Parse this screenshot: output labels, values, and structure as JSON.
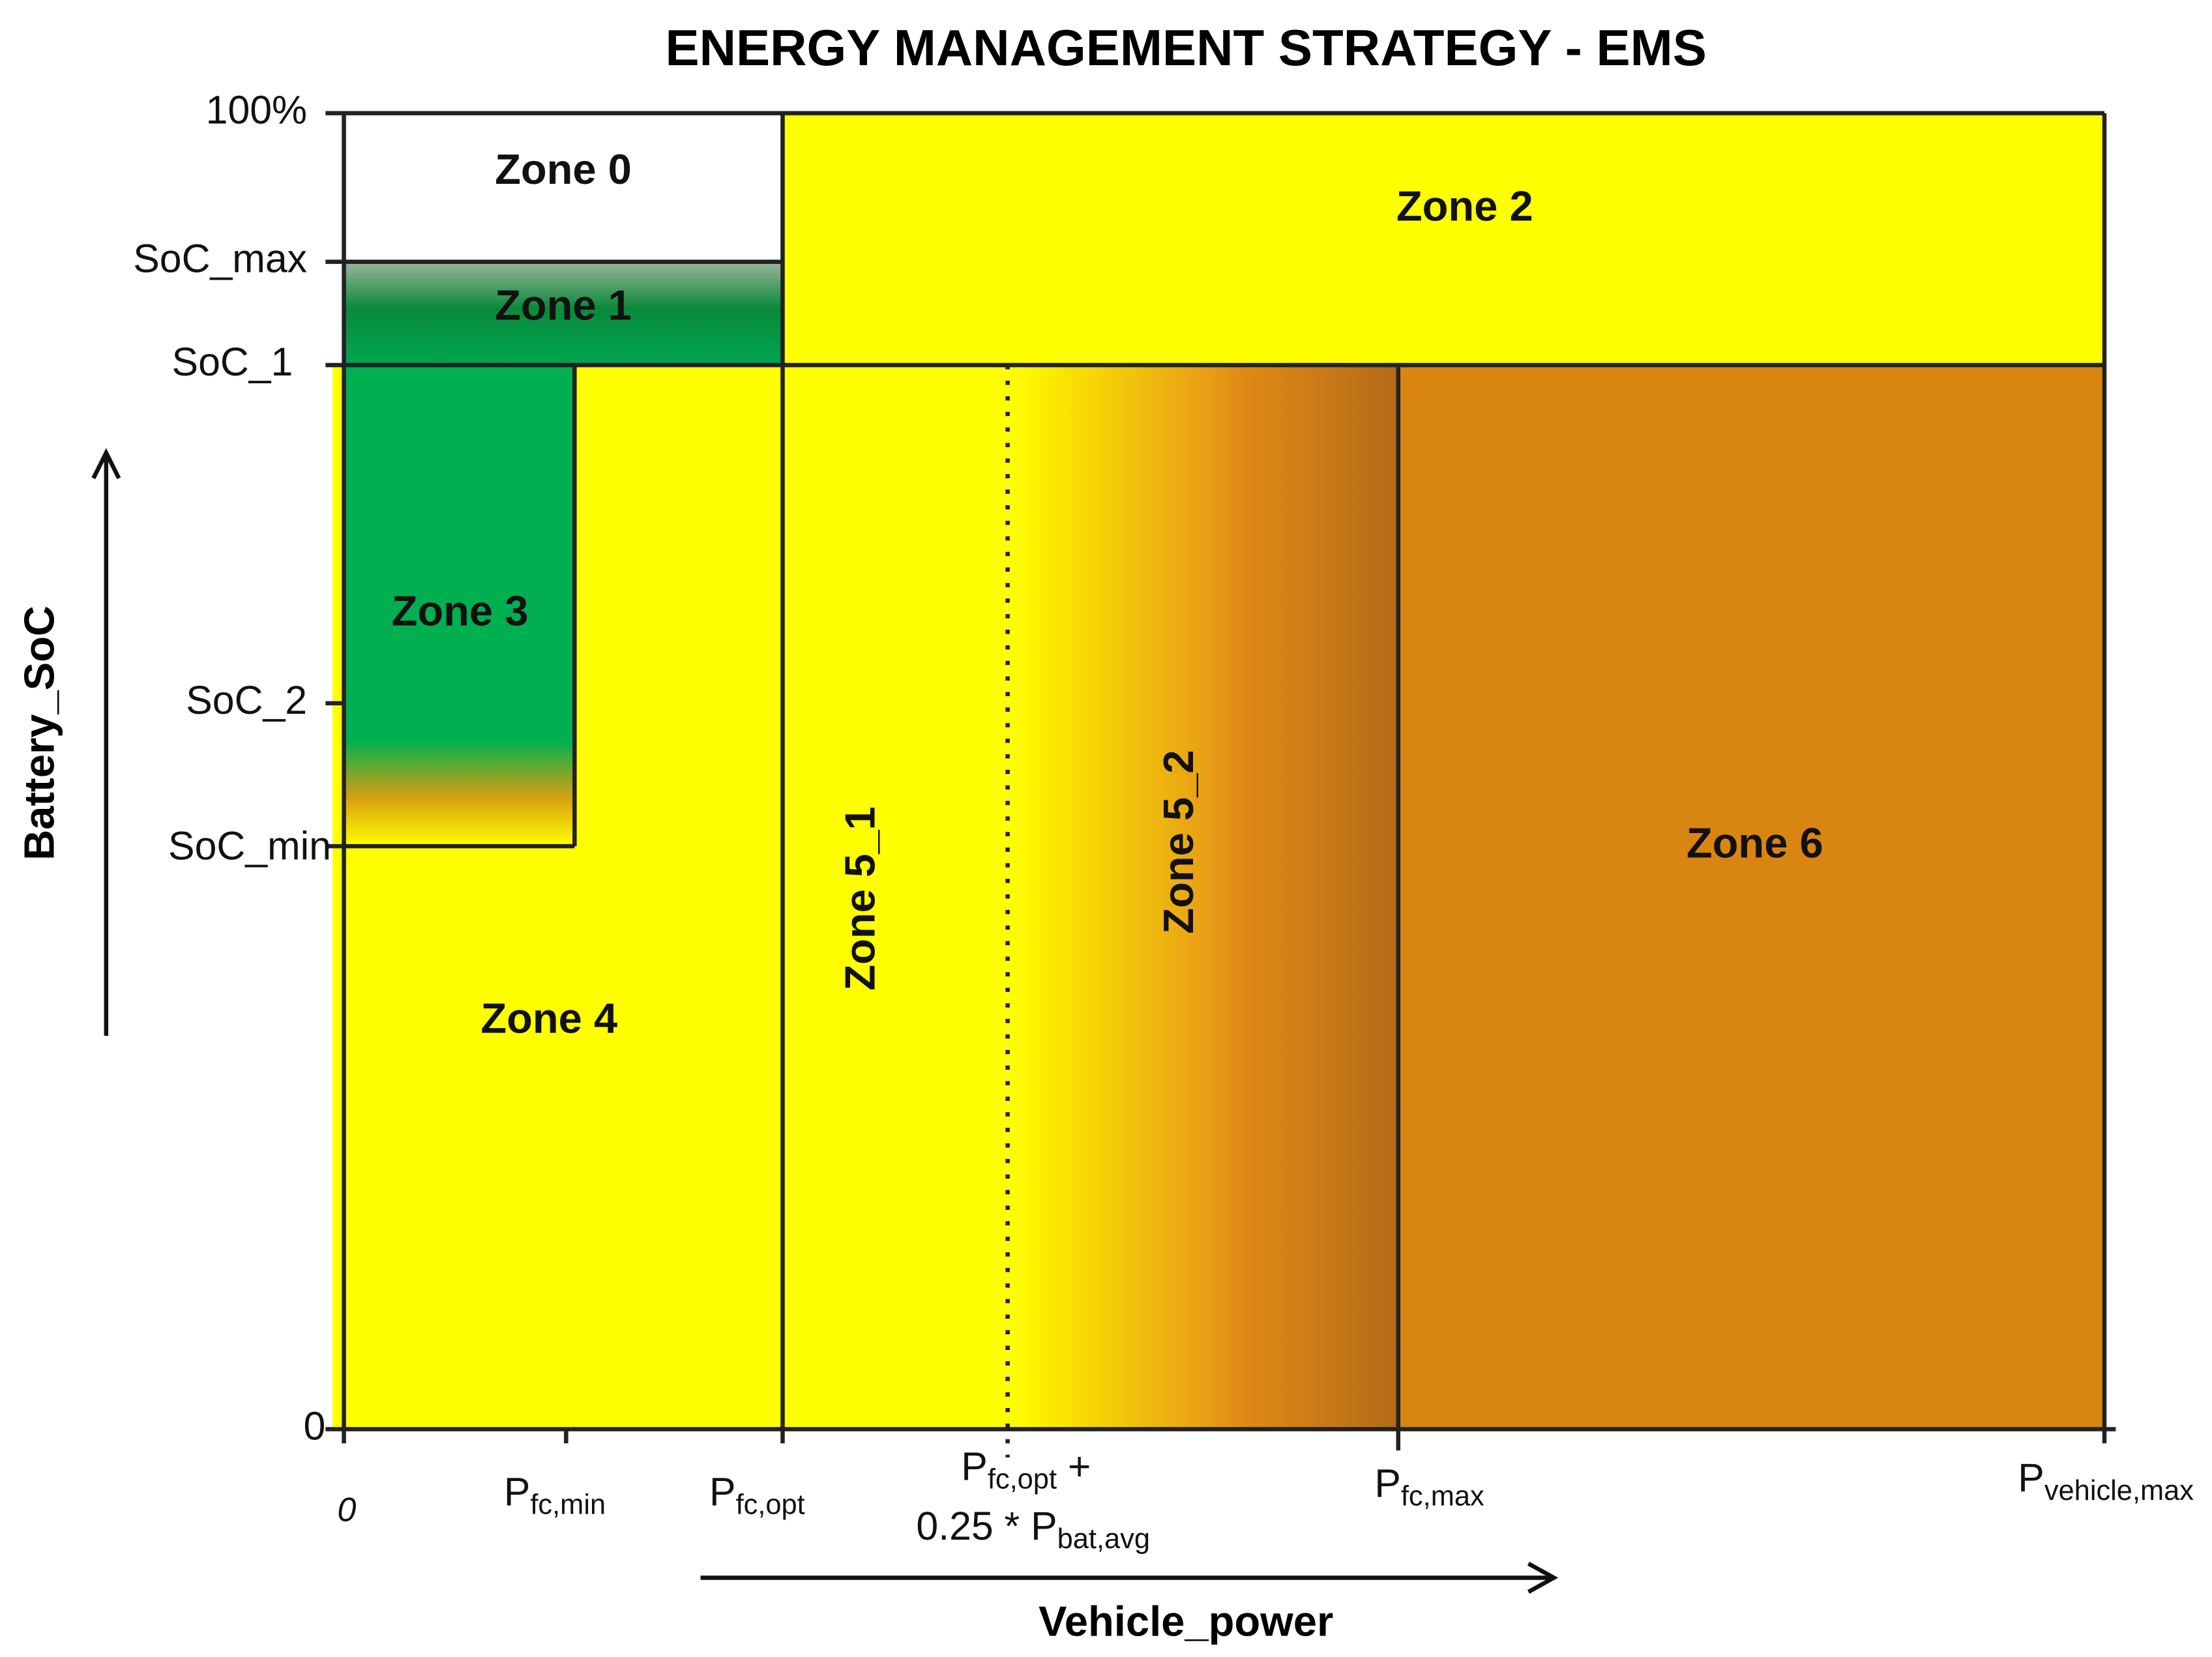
{
  "title": "ENERGY  MANAGEMENT  STRATEGY - EMS",
  "y_axis": {
    "label": "Battery_SoC",
    "ticks": [
      "100%",
      "SoC_max",
      "SoC_1",
      "SoC_2",
      "SoC_min",
      "0"
    ]
  },
  "x_axis": {
    "label": "Vehicle_power",
    "ticks": [
      {
        "text": "0"
      },
      {
        "main": "P",
        "sub": "fc,min"
      },
      {
        "main": "P",
        "sub": "fc,opt"
      },
      {
        "main": "P",
        "sub": "fc,opt",
        "suffix": " +",
        "line2_main": "0.25 * P",
        "line2_sub": "bat,avg"
      },
      {
        "main": "P",
        "sub": "fc,max"
      },
      {
        "main": "P",
        "sub": "vehicle,max"
      }
    ]
  },
  "zones": [
    "Zone 0",
    "Zone 1",
    "Zone 2",
    "Zone 3",
    "Zone 4",
    "Zone 5_1",
    "Zone 5_2",
    "Zone 6"
  ]
}
